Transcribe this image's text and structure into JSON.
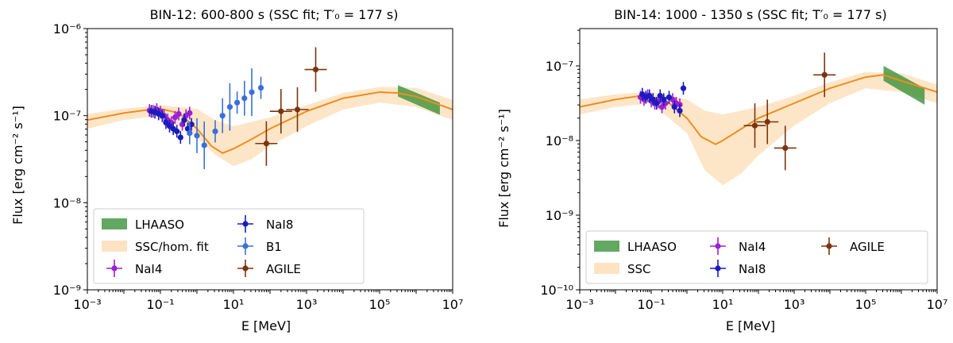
{
  "chart_data": [
    {
      "type": "scatter",
      "title": "BIN-12: 600-800 s (SSC fit; T′₀ = 177 s)",
      "xlabel": "E [MeV]",
      "ylabel": "Flux [erg cm⁻² s⁻¹]",
      "xlim_log10": [
        -3,
        7
      ],
      "ylim_log10": [
        -9,
        -6
      ],
      "x_ticks": [
        {
          "exp": -3,
          "label": "10⁻³"
        },
        {
          "exp": -1,
          "label": "10⁻¹"
        },
        {
          "exp": 1,
          "label": "10¹"
        },
        {
          "exp": 3,
          "label": "10³"
        },
        {
          "exp": 5,
          "label": "10⁵"
        },
        {
          "exp": 7,
          "label": "10⁷"
        }
      ],
      "y_ticks": [
        {
          "exp": -9,
          "label": "10⁻⁹"
        },
        {
          "exp": -8,
          "label": "10⁻⁸"
        },
        {
          "exp": -7,
          "label": "10⁻⁷"
        },
        {
          "exp": -6,
          "label": "10⁻⁶"
        }
      ],
      "legend": {
        "placement": "lower-left",
        "columns": 2,
        "entries": [
          {
            "label": "LHAASO",
            "kind": "patch",
            "color": "#2e8b2e"
          },
          {
            "label": "SSC/hom. fit",
            "kind": "band",
            "color": "#fde3c2"
          },
          {
            "label": "NaI4",
            "kind": "marker",
            "color": "#9b1fd3"
          },
          {
            "label": "NaI8",
            "kind": "marker",
            "color": "#1a1abf"
          },
          {
            "label": "B1",
            "kind": "marker",
            "color": "#3b6fd8"
          },
          {
            "label": "AGILE",
            "kind": "marker",
            "color": "#7a3510"
          }
        ]
      },
      "model_curve_log10": [
        [
          -3,
          -7.05
        ],
        [
          -2,
          -6.97
        ],
        [
          -1.3,
          -6.93
        ],
        [
          -1,
          -6.92
        ],
        [
          -0.5,
          -6.97
        ],
        [
          0,
          -7.15
        ],
        [
          0.4,
          -7.35
        ],
        [
          0.7,
          -7.43
        ],
        [
          1,
          -7.38
        ],
        [
          1.5,
          -7.27
        ],
        [
          2,
          -7.15
        ],
        [
          3,
          -6.95
        ],
        [
          4,
          -6.8
        ],
        [
          5,
          -6.73
        ],
        [
          5.5,
          -6.74
        ],
        [
          6,
          -6.78
        ],
        [
          7,
          -6.93
        ]
      ],
      "model_band_log10": {
        "upper": [
          [
            -3,
            -6.98
          ],
          [
            -2,
            -6.92
          ],
          [
            -1,
            -6.88
          ],
          [
            0,
            -6.92
          ],
          [
            0.5,
            -7.05
          ],
          [
            1,
            -7.12
          ],
          [
            2,
            -7.02
          ],
          [
            3,
            -6.88
          ],
          [
            4,
            -6.74
          ],
          [
            5,
            -6.67
          ],
          [
            6,
            -6.68
          ],
          [
            7,
            -6.82
          ]
        ],
        "lower": [
          [
            -3,
            -7.15
          ],
          [
            -2,
            -7.05
          ],
          [
            -1,
            -7.0
          ],
          [
            0,
            -7.25
          ],
          [
            0.5,
            -7.45
          ],
          [
            1,
            -7.58
          ],
          [
            1.5,
            -7.5
          ],
          [
            2,
            -7.35
          ],
          [
            3,
            -7.12
          ],
          [
            4,
            -6.93
          ],
          [
            5,
            -6.85
          ],
          [
            6,
            -6.9
          ],
          [
            7,
            -7.05
          ]
        ]
      },
      "lhaaso_band_log10": {
        "x0": 5.5,
        "x1": 6.65,
        "upper": [
          -6.65,
          -6.85
        ],
        "lower": [
          -6.78,
          -6.99
        ]
      },
      "series": [
        {
          "name": "NaI4",
          "color": "#9b1fd3",
          "points": [
            [
              -1.3,
              -6.94
            ],
            [
              -1.2,
              -6.95
            ],
            [
              -1.1,
              -6.93
            ],
            [
              -1.0,
              -6.96
            ],
            [
              -0.9,
              -7.0
            ],
            [
              -0.8,
              -7.05
            ],
            [
              -0.7,
              -7.08
            ],
            [
              -0.6,
              -7.02
            ],
            [
              -0.5,
              -6.98
            ],
            [
              -0.4,
              -7.1
            ],
            [
              -0.3,
              -7.0
            ],
            [
              -0.2,
              -6.97
            ]
          ]
        },
        {
          "name": "NaI8",
          "color": "#1a1abf",
          "points": [
            [
              -1.25,
              -6.95
            ],
            [
              -1.15,
              -6.96
            ],
            [
              -1.05,
              -6.98
            ],
            [
              -0.95,
              -7.0
            ],
            [
              -0.85,
              -7.08
            ],
            [
              -0.75,
              -7.12
            ],
            [
              -0.65,
              -7.15
            ],
            [
              -0.55,
              -7.18
            ],
            [
              -0.45,
              -7.25
            ],
            [
              -0.35,
              -7.05
            ],
            [
              -0.25,
              -7.15
            ],
            [
              -0.15,
              -7.1
            ]
          ]
        },
        {
          "name": "B1",
          "color": "#3b6fd8",
          "points": [
            [
              -0.2,
              -7.2
            ],
            [
              0,
              -7.23
            ],
            [
              0.2,
              -7.34
            ],
            [
              0.5,
              -7.18
            ],
            [
              0.7,
              -7.0
            ],
            [
              0.9,
              -6.9
            ],
            [
              1.1,
              -6.85
            ],
            [
              1.3,
              -6.8
            ],
            [
              1.5,
              -6.73
            ],
            [
              1.75,
              -6.68
            ]
          ]
        },
        {
          "name": "AGILE",
          "color": "#7a3510",
          "points": [
            [
              1.9,
              -7.32
            ],
            [
              2.3,
              -6.95
            ],
            [
              2.75,
              -6.93
            ],
            [
              3.25,
              -6.47
            ]
          ]
        }
      ]
    },
    {
      "type": "scatter",
      "title": "BIN-14: 1000 - 1350 s (SSC fit; T′₀ = 177 s)",
      "xlabel": "E [MeV]",
      "ylabel": "Flux [erg cm⁻² s⁻¹]",
      "xlim_log10": [
        -3,
        7
      ],
      "ylim_log10": [
        -10,
        -6.5
      ],
      "x_ticks": [
        {
          "exp": -3,
          "label": "10⁻³"
        },
        {
          "exp": -1,
          "label": "10⁻¹"
        },
        {
          "exp": 1,
          "label": "10¹"
        },
        {
          "exp": 3,
          "label": "10³"
        },
        {
          "exp": 5,
          "label": "10⁵"
        },
        {
          "exp": 7,
          "label": "10⁷"
        }
      ],
      "y_ticks": [
        {
          "exp": -10,
          "label": "10⁻¹⁰"
        },
        {
          "exp": -9,
          "label": "10⁻⁹"
        },
        {
          "exp": -8,
          "label": "10⁻⁸"
        },
        {
          "exp": -7,
          "label": "10⁻⁷"
        }
      ],
      "legend": {
        "placement": "lower-left",
        "columns": 3,
        "entries": [
          {
            "label": "LHAASO",
            "kind": "patch",
            "color": "#2e8b2e"
          },
          {
            "label": "SSC",
            "kind": "band",
            "color": "#fde3c2"
          },
          {
            "label": "NaI4",
            "kind": "marker",
            "color": "#9b1fd3"
          },
          {
            "label": "NaI8",
            "kind": "marker",
            "color": "#1a1abf"
          },
          {
            "label": "AGILE",
            "kind": "marker",
            "color": "#7a3510"
          }
        ]
      },
      "model_curve_log10": [
        [
          -3,
          -7.55
        ],
        [
          -2,
          -7.45
        ],
        [
          -1.3,
          -7.4
        ],
        [
          -1,
          -7.42
        ],
        [
          -0.5,
          -7.5
        ],
        [
          0,
          -7.7
        ],
        [
          0.4,
          -7.95
        ],
        [
          0.8,
          -8.05
        ],
        [
          1,
          -8.0
        ],
        [
          1.5,
          -7.85
        ],
        [
          2,
          -7.7
        ],
        [
          3,
          -7.5
        ],
        [
          4,
          -7.3
        ],
        [
          5,
          -7.15
        ],
        [
          5.5,
          -7.12
        ],
        [
          6,
          -7.2
        ],
        [
          7,
          -7.35
        ]
      ],
      "model_band_log10": {
        "upper": [
          [
            -3,
            -7.45
          ],
          [
            -2,
            -7.38
          ],
          [
            -1,
            -7.35
          ],
          [
            0,
            -7.45
          ],
          [
            0.5,
            -7.6
          ],
          [
            1,
            -7.65
          ],
          [
            2,
            -7.55
          ],
          [
            3,
            -7.4
          ],
          [
            4,
            -7.22
          ],
          [
            5,
            -7.08
          ],
          [
            6,
            -7.1
          ],
          [
            7,
            -7.25
          ]
        ],
        "lower": [
          [
            -3,
            -7.65
          ],
          [
            -2,
            -7.55
          ],
          [
            -1,
            -7.5
          ],
          [
            0,
            -7.9
          ],
          [
            0.5,
            -8.4
          ],
          [
            1,
            -8.6
          ],
          [
            1.5,
            -8.45
          ],
          [
            2,
            -8.2
          ],
          [
            3,
            -7.8
          ],
          [
            4,
            -7.5
          ],
          [
            5,
            -7.3
          ],
          [
            6,
            -7.35
          ],
          [
            7,
            -7.5
          ]
        ]
      },
      "lhaaso_band_log10": {
        "x0": 5.5,
        "x1": 6.65,
        "upper": [
          -7.0,
          -7.3
        ],
        "lower": [
          -7.2,
          -7.52
        ]
      },
      "series": [
        {
          "name": "NaI4",
          "color": "#9b1fd3",
          "points": [
            [
              -1.3,
              -7.42
            ],
            [
              -1.2,
              -7.45
            ],
            [
              -1.1,
              -7.4
            ],
            [
              -1.0,
              -7.47
            ],
            [
              -0.9,
              -7.5
            ],
            [
              -0.8,
              -7.48
            ],
            [
              -0.7,
              -7.55
            ],
            [
              -0.6,
              -7.5
            ],
            [
              -0.4,
              -7.45
            ],
            [
              -0.3,
              -7.5
            ],
            [
              -0.2,
              -7.52
            ]
          ]
        },
        {
          "name": "NaI8",
          "color": "#1a1abf",
          "points": [
            [
              -1.25,
              -7.38
            ],
            [
              -1.15,
              -7.42
            ],
            [
              -1.05,
              -7.4
            ],
            [
              -0.95,
              -7.45
            ],
            [
              -0.85,
              -7.5
            ],
            [
              -0.75,
              -7.4
            ],
            [
              -0.65,
              -7.45
            ],
            [
              -0.5,
              -7.42
            ],
            [
              -0.35,
              -7.55
            ],
            [
              -0.2,
              -7.6
            ],
            [
              -0.1,
              -7.3
            ]
          ]
        },
        {
          "name": "AGILE",
          "color": "#7a3510",
          "points": [
            [
              1.9,
              -7.8
            ],
            [
              2.25,
              -7.75
            ],
            [
              2.75,
              -8.1
            ],
            [
              3.85,
              -7.12
            ]
          ]
        }
      ]
    }
  ]
}
